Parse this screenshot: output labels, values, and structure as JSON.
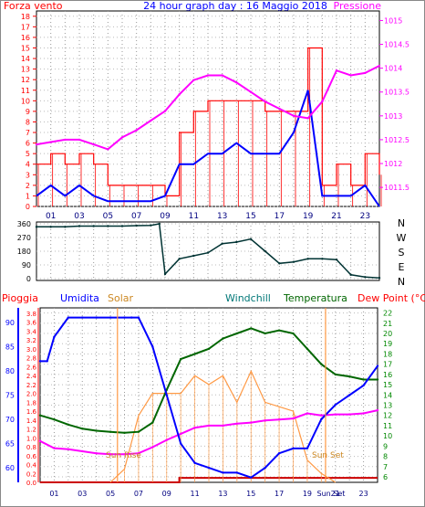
{
  "header": {
    "left_label": "Forza vento",
    "title": "24 hour graph day : 16 Maggio 2018",
    "right_label": "Pressione"
  },
  "compass": {
    "letters": [
      "N",
      "W",
      "S",
      "E",
      "N"
    ]
  },
  "bottom_header": {
    "pioggia": "Pioggia",
    "umidita": "Umidita",
    "solar": "Solar",
    "windchill": "Windchill",
    "temperatura": "Temperatura",
    "dew_point": "Dew Point (°C)"
  },
  "annotations": {
    "sunrise": "Sun Rise",
    "sunset": "Sun Set",
    "sunset_axis": "Sun Set"
  },
  "colors": {
    "wind": "#ff0000",
    "gust": "#0000ff",
    "pressure": "#ff00ff",
    "direction": "#003333",
    "humidity": "#0000ff",
    "solar": "#ff9944",
    "temperature": "#006600",
    "dewpoint": "#ff00ff",
    "rain": "#cc0000",
    "axis_red": "#ff0000",
    "axis_blue": "#0000ff",
    "axis_green": "#008800"
  },
  "chart_data": [
    {
      "type": "line",
      "panel": "wind-pressure",
      "x_ticks": [
        "01",
        "03",
        "05",
        "07",
        "09",
        "11",
        "13",
        "15",
        "17",
        "19",
        "21",
        "23"
      ],
      "left_axis": {
        "label": "Forza vento",
        "ticks": [
          0,
          1,
          2,
          3,
          4,
          5,
          6,
          7,
          8,
          9,
          10,
          11,
          12,
          13,
          14,
          15,
          16,
          17,
          18
        ],
        "ylim": [
          0,
          18.5
        ]
      },
      "right_axis": {
        "label": "Pressione",
        "ticks": [
          1011.5,
          1012,
          1012.5,
          1013,
          1013.5,
          1014,
          1014.5,
          1015
        ],
        "ylim": [
          1011.1,
          1015.2
        ]
      },
      "series": [
        {
          "name": "Forza vento",
          "axis": "left",
          "x": [
            0,
            1,
            2,
            3,
            4,
            5,
            6,
            7,
            8,
            9,
            10,
            11,
            12,
            13,
            14,
            15,
            16,
            17,
            18,
            19,
            20,
            21,
            22,
            23,
            24
          ],
          "y": [
            4,
            5,
            4,
            5,
            4,
            2,
            2,
            2,
            2,
            1,
            7,
            9,
            10,
            10,
            10,
            10,
            9,
            9,
            9,
            15,
            2,
            4,
            2,
            5,
            3
          ]
        },
        {
          "name": "Pressione",
          "axis": "right",
          "x": [
            0,
            1,
            2,
            3,
            4,
            5,
            6,
            7,
            8,
            9,
            10,
            11,
            12,
            13,
            14,
            15,
            16,
            17,
            18,
            19,
            20,
            21,
            22,
            23,
            24
          ],
          "y": [
            1012.4,
            1012.45,
            1012.5,
            1012.5,
            1012.4,
            1012.3,
            1012.55,
            1012.7,
            1012.9,
            1013.1,
            1013.45,
            1013.75,
            1013.85,
            1013.85,
            1013.7,
            1013.5,
            1013.3,
            1013.15,
            1013.0,
            1012.95,
            1013.3,
            1013.95,
            1013.85,
            1013.9,
            1014.05
          ]
        },
        {
          "name": "Raffica",
          "axis": "left",
          "x": [
            0,
            1,
            2,
            3,
            4,
            5,
            6,
            7,
            8,
            9,
            10,
            11,
            12,
            13,
            14,
            15,
            16,
            17,
            18,
            19,
            20,
            21,
            22,
            23,
            24
          ],
          "y": [
            1,
            2,
            1,
            2,
            1,
            0.5,
            0.5,
            0.5,
            0.5,
            1,
            4,
            4,
            5,
            5,
            6,
            5,
            5,
            5,
            7,
            11,
            1,
            1,
            1,
            2,
            0
          ]
        }
      ]
    },
    {
      "type": "line",
      "panel": "wind-direction",
      "x": [
        0,
        1,
        2,
        3,
        4,
        5,
        6,
        7,
        8,
        8.6,
        9,
        10,
        11,
        12,
        13,
        14,
        15,
        16,
        17,
        18,
        19,
        20,
        21,
        22,
        23,
        24
      ],
      "y": [
        340,
        340,
        340,
        345,
        345,
        345,
        345,
        348,
        350,
        360,
        30,
        130,
        150,
        170,
        230,
        240,
        260,
        180,
        100,
        110,
        130,
        130,
        125,
        25,
        10,
        5
      ],
      "ylim": [
        0,
        360
      ],
      "y_ticks": [
        0,
        90,
        180,
        270,
        360
      ]
    },
    {
      "type": "line",
      "panel": "weather",
      "x_ticks": [
        "01",
        "03",
        "05",
        "07",
        "09",
        "11",
        "13",
        "15",
        "17",
        "19",
        "Sun Set",
        "21",
        "23"
      ],
      "rain_axis": {
        "label": "Pioggia",
        "ticks": [
          0,
          0.2,
          0.4,
          0.6,
          0.8,
          1.0,
          1.2,
          1.4,
          1.6,
          1.8,
          2.0,
          2.2,
          2.4,
          2.6,
          2.8,
          3.0,
          3.2,
          3.4,
          3.6,
          3.8
        ],
        "ylim": [
          0,
          3.8
        ]
      },
      "humidity_axis": {
        "label": "Umidita",
        "ticks": [
          60,
          65,
          70,
          75,
          80,
          85,
          90
        ],
        "ylim": [
          57,
          93
        ]
      },
      "temp_axis": {
        "label": "Temperatura",
        "ticks": [
          6,
          7,
          8,
          9,
          10,
          11,
          12,
          13,
          14,
          15,
          16,
          17,
          18,
          19,
          20,
          21,
          22
        ],
        "ylim": [
          6,
          22.5
        ]
      },
      "sunrise_hour": 5.5,
      "sunset_hour": 20.3,
      "series": [
        {
          "name": "Umidita",
          "axis": "humidity",
          "x": [
            0,
            0.5,
            1,
            2,
            3,
            4,
            5,
            6,
            6.5,
            7,
            8,
            9,
            10,
            11,
            12,
            13,
            14,
            15,
            16,
            17,
            18,
            19,
            20,
            21,
            22,
            23,
            24
          ],
          "y": [
            82,
            82,
            87,
            91,
            91,
            91,
            91,
            91,
            91,
            91,
            85,
            75,
            65,
            61,
            60,
            59,
            59,
            58,
            60,
            63,
            64,
            64,
            70,
            73,
            75,
            77,
            81
          ]
        },
        {
          "name": "Solar",
          "axis": "rain",
          "x": [
            5,
            6,
            7,
            8,
            9,
            10,
            11,
            12,
            13,
            14,
            15,
            16,
            17,
            18,
            19,
            20,
            21
          ],
          "y": [
            0,
            0.3,
            1.5,
            2.0,
            2.0,
            2.0,
            2.4,
            2.2,
            2.4,
            1.8,
            2.5,
            1.8,
            1.7,
            1.6,
            0.5,
            0.2,
            0
          ]
        },
        {
          "name": "Temperatura",
          "axis": "temp",
          "x": [
            0,
            1,
            2,
            3,
            4,
            5,
            6,
            7,
            8,
            9,
            10,
            11,
            12,
            13,
            14,
            15,
            16,
            17,
            18,
            19,
            20,
            21,
            22,
            23,
            24
          ],
          "y": [
            12,
            11.6,
            11.1,
            10.7,
            10.5,
            10.4,
            10.3,
            10.4,
            11.3,
            14.5,
            17.5,
            18,
            18.5,
            19.5,
            20,
            20.5,
            20,
            20.3,
            20,
            18.5,
            17,
            16,
            15.8,
            15.5,
            15.5
          ]
        },
        {
          "name": "Dew Point",
          "axis": "temp",
          "x": [
            0,
            1,
            2,
            3,
            4,
            5,
            6,
            7,
            8,
            9,
            10,
            11,
            12,
            13,
            14,
            15,
            16,
            17,
            18,
            19,
            20,
            21,
            22,
            23,
            24
          ],
          "y": [
            9.5,
            8.8,
            8.7,
            8.5,
            8.3,
            8.2,
            8.2,
            8.3,
            8.9,
            9.6,
            10.2,
            10.8,
            11,
            11,
            11.2,
            11.3,
            11.5,
            11.6,
            11.7,
            12.2,
            12,
            12.1,
            12.1,
            12.2,
            12.5
          ]
        },
        {
          "name": "Pioggia",
          "axis": "rain",
          "x": [
            0,
            9.9,
            9.9,
            24
          ],
          "y": [
            0,
            0,
            0.1,
            0.1
          ]
        }
      ]
    }
  ]
}
